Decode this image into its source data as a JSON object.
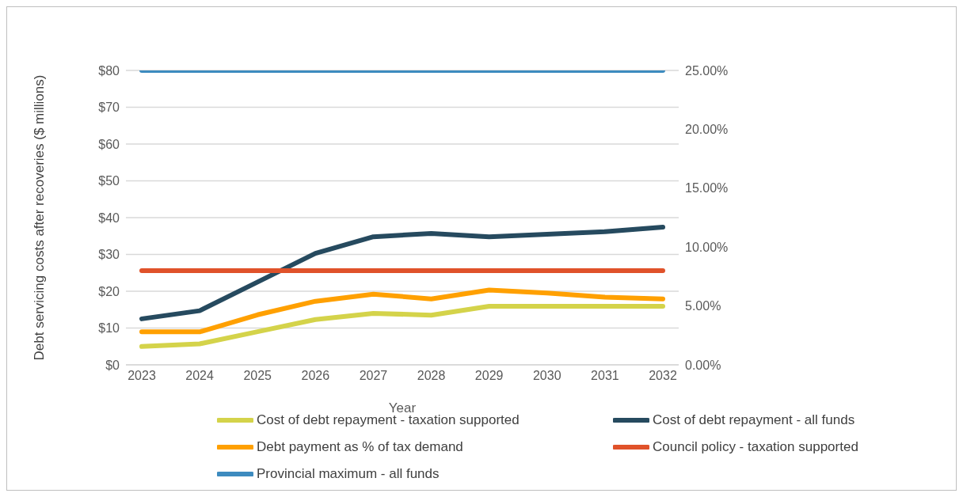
{
  "chart_data": {
    "type": "line",
    "xlabel": "Year",
    "ylabel": "Debt servicing costs after recoveries ($ millions)",
    "categories": [
      "2023",
      "2024",
      "2025",
      "2026",
      "2027",
      "2028",
      "2029",
      "2030",
      "2031",
      "2032"
    ],
    "series": [
      {
        "name": "Cost of debt repayment - taxation supported",
        "color": "#d4d34a",
        "values": [
          5.0,
          5.7,
          9.0,
          12.3,
          14.0,
          13.5,
          15.9,
          15.9,
          15.9,
          15.9
        ]
      },
      {
        "name": "Cost of debt repayment - all funds",
        "color": "#264a5f",
        "values": [
          12.5,
          14.7,
          22.5,
          30.3,
          34.8,
          35.7,
          34.8,
          35.5,
          36.2,
          37.4
        ]
      },
      {
        "name": "Debt payment as % of tax demand",
        "color": "#ffa000",
        "axis": "y2",
        "values": [
          2.8,
          2.8,
          4.25,
          5.4,
          6.0,
          5.6,
          6.35,
          6.1,
          5.75,
          5.6
        ]
      },
      {
        "name": "Council policy - taxation supported",
        "color": "#e0522a",
        "axis": "y2",
        "values": [
          8,
          8,
          8,
          8,
          8,
          8,
          8,
          8,
          8,
          8
        ]
      },
      {
        "name": "Provincial maximum - all funds",
        "color": "#3d8bbf",
        "axis": "y2",
        "values": [
          25,
          25,
          25,
          25,
          25,
          25,
          25,
          25,
          25,
          25
        ]
      }
    ],
    "ylim": [
      0,
      80
    ],
    "yticks": [
      {
        "value": 0,
        "label": "$0"
      },
      {
        "value": 10,
        "label": "$10"
      },
      {
        "value": 20,
        "label": "$20"
      },
      {
        "value": 30,
        "label": "$30"
      },
      {
        "value": 40,
        "label": "$40"
      },
      {
        "value": 50,
        "label": "$50"
      },
      {
        "value": 60,
        "label": "$60"
      },
      {
        "value": 70,
        "label": "$70"
      },
      {
        "value": 80,
        "label": "$80"
      }
    ],
    "y2lim": [
      0,
      25
    ],
    "y2ticks": [
      {
        "value": 0,
        "label": "0.00%"
      },
      {
        "value": 5,
        "label": "5.00%"
      },
      {
        "value": 10,
        "label": "10.00%"
      },
      {
        "value": 15,
        "label": "15.00%"
      },
      {
        "value": 20,
        "label": "20.00%"
      },
      {
        "value": 25,
        "label": "25.00%"
      }
    ],
    "grid": "y",
    "legend": "bottom",
    "marker": "none",
    "line_style": "solid"
  }
}
